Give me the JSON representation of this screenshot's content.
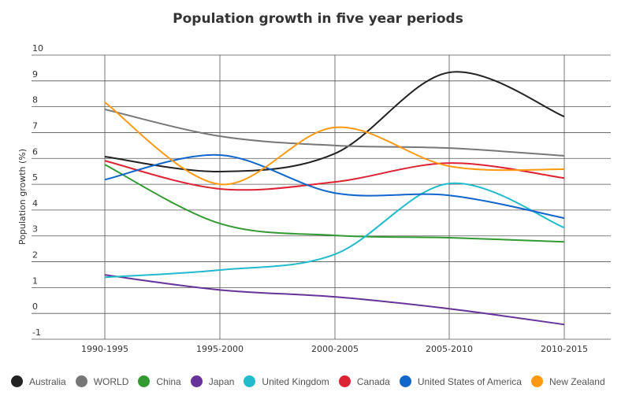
{
  "chart_data": {
    "type": "line",
    "title": "Population growth in five year periods",
    "ylabel": "Population growth (%)",
    "xlabel": "",
    "categories": [
      "1990-1995",
      "1995-2000",
      "2000-2005",
      "2005-2010",
      "2010-2015"
    ],
    "yticks": [
      "10",
      "9",
      "8",
      "7",
      "6",
      "5",
      "4",
      "3",
      "2",
      "1",
      "0",
      "-1"
    ],
    "ylim": [
      -1,
      10
    ],
    "grid": true,
    "smooth": true,
    "legend_position": "bottom",
    "series": [
      {
        "name": "Australia",
        "color": "#222222",
        "values": [
          6.07,
          5.49,
          6.19,
          9.33,
          7.62
        ]
      },
      {
        "name": "WORLD",
        "color": "#777777",
        "values": [
          7.9,
          6.86,
          6.5,
          6.4,
          6.1
        ]
      },
      {
        "name": "China",
        "color": "#339933",
        "values": [
          5.76,
          3.48,
          3.02,
          2.93,
          2.77
        ]
      },
      {
        "name": "Japan",
        "color": "#663399",
        "values": [
          1.49,
          0.91,
          0.64,
          0.18,
          -0.43
        ]
      },
      {
        "name": "United Kingdom",
        "color": "#22bbcc",
        "values": [
          1.4,
          1.68,
          2.29,
          5.03,
          3.32
        ]
      },
      {
        "name": "Canada",
        "color": "#dd2233",
        "values": [
          5.91,
          4.82,
          5.09,
          5.82,
          5.24
        ]
      },
      {
        "name": "United States of America",
        "color": "#1166cc",
        "values": [
          5.18,
          6.13,
          4.66,
          4.57,
          3.69
        ]
      },
      {
        "name": "New Zealand",
        "color": "#ff9911",
        "values": [
          8.17,
          5.0,
          7.2,
          5.7,
          5.58
        ]
      }
    ]
  }
}
